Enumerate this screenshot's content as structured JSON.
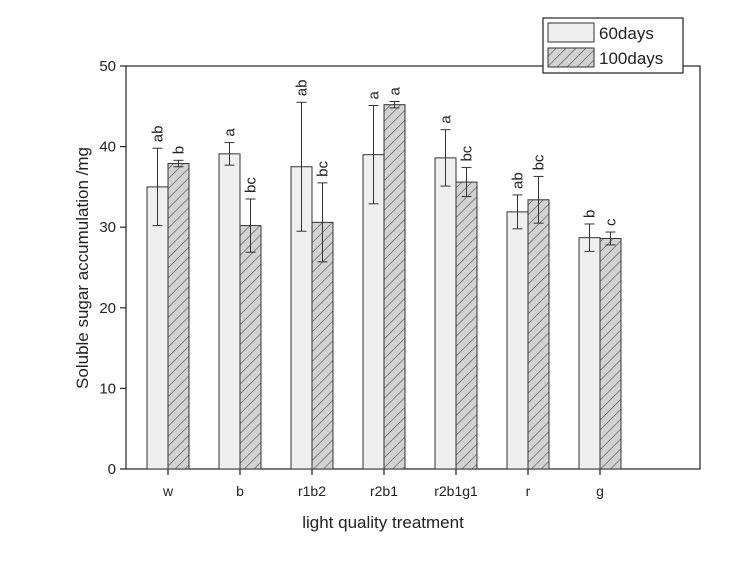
{
  "chart_data": {
    "type": "bar",
    "title": "",
    "xlabel": "light quality treatment",
    "ylabel": "Soluble sugar accumulation /mg",
    "ylim": [
      0,
      50
    ],
    "yticks": [
      0,
      10,
      20,
      30,
      40,
      50
    ],
    "categories": [
      "w",
      "b",
      "r1b2",
      "r2b1",
      "r2b1g1",
      "r",
      "g"
    ],
    "series": [
      {
        "name": "60days",
        "fill": "#efefef",
        "values": [
          35.0,
          39.1,
          37.5,
          39.0,
          38.6,
          31.9,
          28.7
        ],
        "errors": [
          4.8,
          1.4,
          8.0,
          6.1,
          3.5,
          2.1,
          1.7
        ],
        "letters": [
          "ab",
          "a",
          "ab",
          "a",
          "a",
          "ab",
          "b"
        ]
      },
      {
        "name": "100days",
        "fill": "#cfcfcf",
        "values": [
          37.9,
          30.2,
          30.6,
          45.2,
          35.6,
          33.4,
          28.6
        ],
        "errors": [
          0.4,
          3.3,
          4.9,
          0.4,
          1.8,
          2.9,
          0.8
        ],
        "letters": [
          "b",
          "bc",
          "bc",
          "a",
          "bc",
          "bc",
          "c"
        ]
      }
    ],
    "legend_position": "top-right",
    "grid": false,
    "hatch_series": "100days"
  }
}
